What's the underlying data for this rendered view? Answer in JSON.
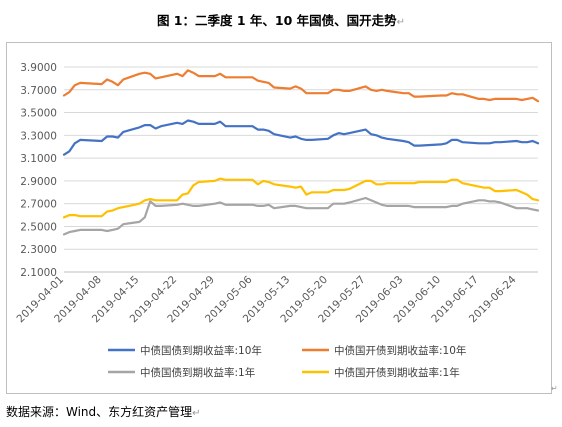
{
  "title": "图 1：二季度 1 年、10 年国债、国开走势",
  "source": "数据来源：Wind、东方红资产管理",
  "edit_mark": "↵",
  "chart_data": {
    "type": "line",
    "title": "",
    "xlabel": "",
    "ylabel": "",
    "ylim": [
      2.1,
      3.9
    ],
    "yticks": [
      "2.1000",
      "2.3000",
      "2.5000",
      "2.7000",
      "2.9000",
      "3.1000",
      "3.3000",
      "3.5000",
      "3.7000",
      "3.9000"
    ],
    "x_range": [
      "2019-04-01",
      "2019-06-28"
    ],
    "xticks": [
      "2019-04-01",
      "2019-04-08",
      "2019-04-15",
      "2019-04-22",
      "2019-04-29",
      "2019-05-06",
      "2019-05-13",
      "2019-05-20",
      "2019-05-27",
      "2019-06-03",
      "2019-06-10",
      "2019-06-17",
      "2019-06-24"
    ],
    "grid": "horizontal",
    "legend": "bottom",
    "series": [
      {
        "name": "中债国债到期收益率:10年",
        "color": "#4472c4",
        "points": [
          [
            "2019-04-01",
            3.13
          ],
          [
            "2019-04-02",
            3.16
          ],
          [
            "2019-04-03",
            3.23
          ],
          [
            "2019-04-04",
            3.26
          ],
          [
            "2019-04-08",
            3.25
          ],
          [
            "2019-04-09",
            3.29
          ],
          [
            "2019-04-10",
            3.29
          ],
          [
            "2019-04-11",
            3.28
          ],
          [
            "2019-04-12",
            3.33
          ],
          [
            "2019-04-15",
            3.37
          ],
          [
            "2019-04-16",
            3.39
          ],
          [
            "2019-04-17",
            3.39
          ],
          [
            "2019-04-18",
            3.36
          ],
          [
            "2019-04-19",
            3.38
          ],
          [
            "2019-04-22",
            3.41
          ],
          [
            "2019-04-23",
            3.4
          ],
          [
            "2019-04-24",
            3.43
          ],
          [
            "2019-04-25",
            3.42
          ],
          [
            "2019-04-26",
            3.4
          ],
          [
            "2019-04-29",
            3.4
          ],
          [
            "2019-04-30",
            3.42
          ],
          [
            "2019-05-01",
            3.38
          ],
          [
            "2019-05-06",
            3.38
          ],
          [
            "2019-05-07",
            3.35
          ],
          [
            "2019-05-08",
            3.35
          ],
          [
            "2019-05-09",
            3.34
          ],
          [
            "2019-05-10",
            3.31
          ],
          [
            "2019-05-13",
            3.28
          ],
          [
            "2019-05-14",
            3.29
          ],
          [
            "2019-05-15",
            3.27
          ],
          [
            "2019-05-16",
            3.26
          ],
          [
            "2019-05-17",
            3.26
          ],
          [
            "2019-05-20",
            3.27
          ],
          [
            "2019-05-21",
            3.3
          ],
          [
            "2019-05-22",
            3.32
          ],
          [
            "2019-05-23",
            3.31
          ],
          [
            "2019-05-24",
            3.32
          ],
          [
            "2019-05-27",
            3.35
          ],
          [
            "2019-05-28",
            3.31
          ],
          [
            "2019-05-29",
            3.3
          ],
          [
            "2019-05-30",
            3.28
          ],
          [
            "2019-05-31",
            3.27
          ],
          [
            "2019-06-03",
            3.25
          ],
          [
            "2019-06-04",
            3.24
          ],
          [
            "2019-06-05",
            3.21
          ],
          [
            "2019-06-06",
            3.21
          ],
          [
            "2019-06-10",
            3.22
          ],
          [
            "2019-06-11",
            3.23
          ],
          [
            "2019-06-12",
            3.26
          ],
          [
            "2019-06-13",
            3.26
          ],
          [
            "2019-06-14",
            3.24
          ],
          [
            "2019-06-17",
            3.23
          ],
          [
            "2019-06-18",
            3.23
          ],
          [
            "2019-06-19",
            3.23
          ],
          [
            "2019-06-20",
            3.24
          ],
          [
            "2019-06-21",
            3.24
          ],
          [
            "2019-06-24",
            3.25
          ],
          [
            "2019-06-25",
            3.24
          ],
          [
            "2019-06-26",
            3.24
          ],
          [
            "2019-06-27",
            3.25
          ],
          [
            "2019-06-28",
            3.23
          ]
        ]
      },
      {
        "name": "中债国开债到期收益率:10年",
        "color": "#ed7d31",
        "points": [
          [
            "2019-04-01",
            3.65
          ],
          [
            "2019-04-02",
            3.68
          ],
          [
            "2019-04-03",
            3.74
          ],
          [
            "2019-04-04",
            3.76
          ],
          [
            "2019-04-08",
            3.75
          ],
          [
            "2019-04-09",
            3.79
          ],
          [
            "2019-04-10",
            3.77
          ],
          [
            "2019-04-11",
            3.74
          ],
          [
            "2019-04-12",
            3.79
          ],
          [
            "2019-04-15",
            3.84
          ],
          [
            "2019-04-16",
            3.85
          ],
          [
            "2019-04-17",
            3.84
          ],
          [
            "2019-04-18",
            3.8
          ],
          [
            "2019-04-19",
            3.81
          ],
          [
            "2019-04-22",
            3.84
          ],
          [
            "2019-04-23",
            3.82
          ],
          [
            "2019-04-24",
            3.87
          ],
          [
            "2019-04-25",
            3.85
          ],
          [
            "2019-04-26",
            3.82
          ],
          [
            "2019-04-29",
            3.82
          ],
          [
            "2019-04-30",
            3.84
          ],
          [
            "2019-05-01",
            3.81
          ],
          [
            "2019-05-06",
            3.81
          ],
          [
            "2019-05-07",
            3.78
          ],
          [
            "2019-05-08",
            3.77
          ],
          [
            "2019-05-09",
            3.76
          ],
          [
            "2019-05-10",
            3.72
          ],
          [
            "2019-05-13",
            3.71
          ],
          [
            "2019-05-14",
            3.73
          ],
          [
            "2019-05-15",
            3.71
          ],
          [
            "2019-05-16",
            3.67
          ],
          [
            "2019-05-17",
            3.67
          ],
          [
            "2019-05-20",
            3.67
          ],
          [
            "2019-05-21",
            3.7
          ],
          [
            "2019-05-22",
            3.7
          ],
          [
            "2019-05-23",
            3.69
          ],
          [
            "2019-05-24",
            3.69
          ],
          [
            "2019-05-27",
            3.73
          ],
          [
            "2019-05-28",
            3.7
          ],
          [
            "2019-05-29",
            3.69
          ],
          [
            "2019-05-30",
            3.7
          ],
          [
            "2019-05-31",
            3.69
          ],
          [
            "2019-06-03",
            3.67
          ],
          [
            "2019-06-04",
            3.67
          ],
          [
            "2019-06-05",
            3.64
          ],
          [
            "2019-06-06",
            3.64
          ],
          [
            "2019-06-10",
            3.65
          ],
          [
            "2019-06-11",
            3.65
          ],
          [
            "2019-06-12",
            3.67
          ],
          [
            "2019-06-13",
            3.66
          ],
          [
            "2019-06-14",
            3.66
          ],
          [
            "2019-06-17",
            3.62
          ],
          [
            "2019-06-18",
            3.62
          ],
          [
            "2019-06-19",
            3.61
          ],
          [
            "2019-06-20",
            3.62
          ],
          [
            "2019-06-21",
            3.62
          ],
          [
            "2019-06-24",
            3.62
          ],
          [
            "2019-06-25",
            3.61
          ],
          [
            "2019-06-26",
            3.62
          ],
          [
            "2019-06-27",
            3.63
          ],
          [
            "2019-06-28",
            3.6
          ]
        ]
      },
      {
        "name": "中债国债到期收益率:1年",
        "color": "#a5a5a5",
        "points": [
          [
            "2019-04-01",
            2.43
          ],
          [
            "2019-04-02",
            2.45
          ],
          [
            "2019-04-03",
            2.46
          ],
          [
            "2019-04-04",
            2.47
          ],
          [
            "2019-04-08",
            2.47
          ],
          [
            "2019-04-09",
            2.46
          ],
          [
            "2019-04-10",
            2.47
          ],
          [
            "2019-04-11",
            2.48
          ],
          [
            "2019-04-12",
            2.52
          ],
          [
            "2019-04-15",
            2.54
          ],
          [
            "2019-04-16",
            2.58
          ],
          [
            "2019-04-17",
            2.72
          ],
          [
            "2019-04-18",
            2.68
          ],
          [
            "2019-04-19",
            2.68
          ],
          [
            "2019-04-22",
            2.69
          ],
          [
            "2019-04-23",
            2.7
          ],
          [
            "2019-04-24",
            2.69
          ],
          [
            "2019-04-25",
            2.68
          ],
          [
            "2019-04-26",
            2.68
          ],
          [
            "2019-04-29",
            2.7
          ],
          [
            "2019-04-30",
            2.71
          ],
          [
            "2019-05-01",
            2.69
          ],
          [
            "2019-05-06",
            2.69
          ],
          [
            "2019-05-07",
            2.68
          ],
          [
            "2019-05-08",
            2.68
          ],
          [
            "2019-05-09",
            2.69
          ],
          [
            "2019-05-10",
            2.66
          ],
          [
            "2019-05-13",
            2.68
          ],
          [
            "2019-05-14",
            2.68
          ],
          [
            "2019-05-15",
            2.67
          ],
          [
            "2019-05-16",
            2.66
          ],
          [
            "2019-05-17",
            2.66
          ],
          [
            "2019-05-20",
            2.66
          ],
          [
            "2019-05-21",
            2.7
          ],
          [
            "2019-05-22",
            2.7
          ],
          [
            "2019-05-23",
            2.7
          ],
          [
            "2019-05-24",
            2.71
          ],
          [
            "2019-05-27",
            2.75
          ],
          [
            "2019-05-28",
            2.73
          ],
          [
            "2019-05-29",
            2.71
          ],
          [
            "2019-05-30",
            2.69
          ],
          [
            "2019-05-31",
            2.68
          ],
          [
            "2019-06-03",
            2.68
          ],
          [
            "2019-06-04",
            2.68
          ],
          [
            "2019-06-05",
            2.67
          ],
          [
            "2019-06-06",
            2.67
          ],
          [
            "2019-06-10",
            2.67
          ],
          [
            "2019-06-11",
            2.67
          ],
          [
            "2019-06-12",
            2.68
          ],
          [
            "2019-06-13",
            2.68
          ],
          [
            "2019-06-14",
            2.7
          ],
          [
            "2019-06-17",
            2.73
          ],
          [
            "2019-06-18",
            2.73
          ],
          [
            "2019-06-19",
            2.72
          ],
          [
            "2019-06-20",
            2.72
          ],
          [
            "2019-06-21",
            2.71
          ],
          [
            "2019-06-24",
            2.66
          ],
          [
            "2019-06-25",
            2.66
          ],
          [
            "2019-06-26",
            2.66
          ],
          [
            "2019-06-27",
            2.65
          ],
          [
            "2019-06-28",
            2.64
          ]
        ]
      },
      {
        "name": "中债国开债到期收益率:1年",
        "color": "#ffc000",
        "points": [
          [
            "2019-04-01",
            2.58
          ],
          [
            "2019-04-02",
            2.6
          ],
          [
            "2019-04-03",
            2.6
          ],
          [
            "2019-04-04",
            2.59
          ],
          [
            "2019-04-08",
            2.59
          ],
          [
            "2019-04-09",
            2.63
          ],
          [
            "2019-04-10",
            2.64
          ],
          [
            "2019-04-11",
            2.66
          ],
          [
            "2019-04-12",
            2.67
          ],
          [
            "2019-04-15",
            2.7
          ],
          [
            "2019-04-16",
            2.73
          ],
          [
            "2019-04-17",
            2.74
          ],
          [
            "2019-04-18",
            2.73
          ],
          [
            "2019-04-19",
            2.73
          ],
          [
            "2019-04-22",
            2.73
          ],
          [
            "2019-04-23",
            2.78
          ],
          [
            "2019-04-24",
            2.79
          ],
          [
            "2019-04-25",
            2.86
          ],
          [
            "2019-04-26",
            2.89
          ],
          [
            "2019-04-29",
            2.9
          ],
          [
            "2019-04-30",
            2.92
          ],
          [
            "2019-05-01",
            2.91
          ],
          [
            "2019-05-06",
            2.91
          ],
          [
            "2019-05-07",
            2.87
          ],
          [
            "2019-05-08",
            2.9
          ],
          [
            "2019-05-09",
            2.89
          ],
          [
            "2019-05-10",
            2.87
          ],
          [
            "2019-05-13",
            2.85
          ],
          [
            "2019-05-14",
            2.84
          ],
          [
            "2019-05-15",
            2.85
          ],
          [
            "2019-05-16",
            2.78
          ],
          [
            "2019-05-17",
            2.8
          ],
          [
            "2019-05-20",
            2.8
          ],
          [
            "2019-05-21",
            2.82
          ],
          [
            "2019-05-22",
            2.82
          ],
          [
            "2019-05-23",
            2.82
          ],
          [
            "2019-05-24",
            2.83
          ],
          [
            "2019-05-27",
            2.9
          ],
          [
            "2019-05-28",
            2.9
          ],
          [
            "2019-05-29",
            2.87
          ],
          [
            "2019-05-30",
            2.87
          ],
          [
            "2019-05-31",
            2.88
          ],
          [
            "2019-06-03",
            2.88
          ],
          [
            "2019-06-04",
            2.88
          ],
          [
            "2019-06-05",
            2.88
          ],
          [
            "2019-06-06",
            2.89
          ],
          [
            "2019-06-10",
            2.89
          ],
          [
            "2019-06-11",
            2.89
          ],
          [
            "2019-06-12",
            2.91
          ],
          [
            "2019-06-13",
            2.91
          ],
          [
            "2019-06-14",
            2.88
          ],
          [
            "2019-06-17",
            2.85
          ],
          [
            "2019-06-18",
            2.84
          ],
          [
            "2019-06-19",
            2.84
          ],
          [
            "2019-06-20",
            2.81
          ],
          [
            "2019-06-21",
            2.81
          ],
          [
            "2019-06-24",
            2.82
          ],
          [
            "2019-06-25",
            2.8
          ],
          [
            "2019-06-26",
            2.78
          ],
          [
            "2019-06-27",
            2.74
          ],
          [
            "2019-06-28",
            2.73
          ]
        ]
      }
    ]
  }
}
